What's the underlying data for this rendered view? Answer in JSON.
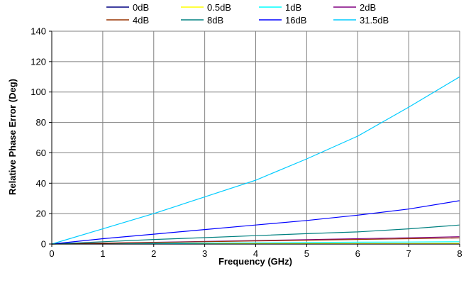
{
  "chart_data": {
    "type": "line",
    "title": "",
    "xlabel": "Frequency (GHz)",
    "ylabel": "Relative Phase Error (Deg)",
    "xlim": [
      0,
      8
    ],
    "ylim": [
      0,
      140
    ],
    "x_ticks": [
      "0",
      "1",
      "2",
      "3",
      "4",
      "5",
      "6",
      "7",
      "8"
    ],
    "y_ticks": [
      "0",
      "20",
      "40",
      "60",
      "80",
      "100",
      "120",
      "140"
    ],
    "grid": true,
    "legend_position": "top",
    "x": [
      0,
      1,
      2,
      3,
      4,
      5,
      6,
      7,
      8
    ],
    "series": [
      {
        "name": "0dB",
        "color": "#000080",
        "values": [
          0,
          0,
          0,
          0,
          0,
          0,
          0,
          0,
          0
        ]
      },
      {
        "name": "0.5dB",
        "color": "#ffff00",
        "values": [
          0,
          0.1,
          0.2,
          0.2,
          0.3,
          0.3,
          0.3,
          0.3,
          0.4
        ]
      },
      {
        "name": "1dB",
        "color": "#00ffff",
        "values": [
          0,
          0.2,
          0.4,
          0.6,
          0.8,
          1.0,
          1.2,
          1.3,
          1.5
        ]
      },
      {
        "name": "2dB",
        "color": "#800080",
        "values": [
          0,
          0.6,
          1.1,
          1.7,
          2.3,
          2.9,
          3.5,
          4.1,
          4.8
        ]
      },
      {
        "name": "4dB",
        "color": "#993300",
        "values": [
          0,
          0.5,
          1.0,
          1.5,
          2.0,
          2.5,
          3.0,
          3.5,
          4.0
        ]
      },
      {
        "name": "8dB",
        "color": "#008080",
        "values": [
          0,
          1.5,
          3.0,
          4.2,
          5.5,
          6.8,
          8.0,
          10.0,
          12.5
        ]
      },
      {
        "name": "16dB",
        "color": "#0000ff",
        "values": [
          0,
          3.5,
          6.5,
          9.5,
          12.5,
          15.5,
          19.0,
          23.0,
          28.5
        ]
      },
      {
        "name": "31.5dB",
        "color": "#00ccff",
        "values": [
          0,
          10,
          20,
          31,
          42,
          56,
          71,
          90,
          110
        ]
      }
    ]
  }
}
